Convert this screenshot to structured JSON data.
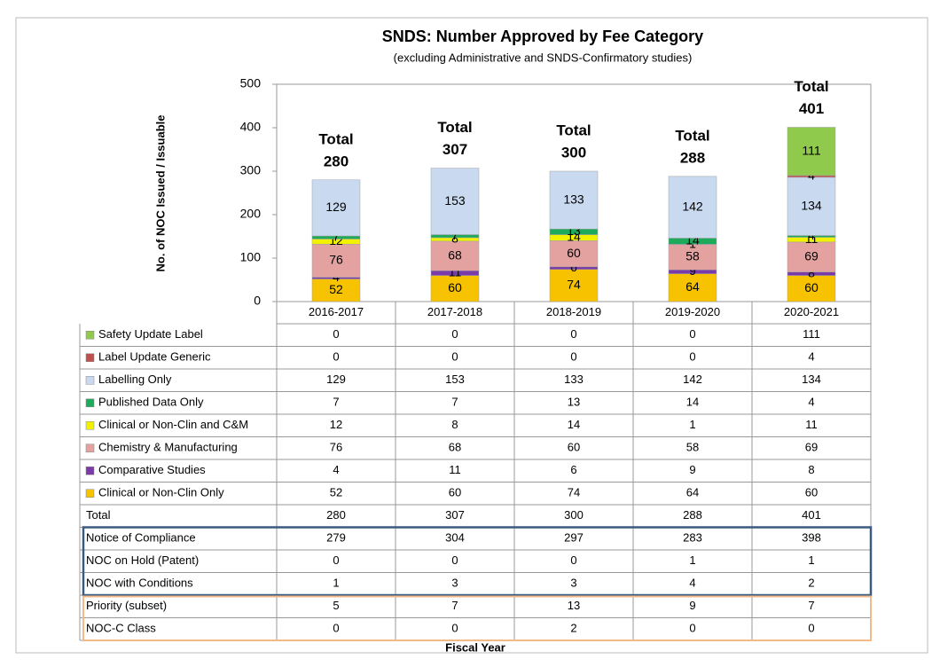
{
  "chart_data": {
    "type": "stacked_bar",
    "title": "SNDS: Number Approved by Fee Category",
    "subtitle": "(excluding Administrative and SNDS-Confirmatory studies)",
    "y_label": "No. of NOC Issued / Issuable",
    "x_label": "Fiscal Year",
    "total_label": "Total",
    "categories": [
      "2016-2017",
      "2017-2018",
      "2018-2019",
      "2019-2020",
      "2020-2021"
    ],
    "ylim": [
      0,
      500
    ],
    "yticks": [
      0,
      100,
      200,
      300,
      400,
      500
    ],
    "series": [
      {
        "name": "Safety Update Label",
        "color": "#8fca4c",
        "values": [
          0,
          0,
          0,
          0,
          111
        ]
      },
      {
        "name": "Label Update Generic",
        "color": "#c0504d",
        "values": [
          0,
          0,
          0,
          0,
          4
        ]
      },
      {
        "name": "Labelling Only",
        "color": "#c9daf0",
        "values": [
          129,
          153,
          133,
          142,
          134
        ]
      },
      {
        "name": "Published Data Only",
        "color": "#1daa5a",
        "values": [
          7,
          7,
          13,
          14,
          4
        ]
      },
      {
        "name": "Clinical or Non-Clin and C&M",
        "color": "#f2f200",
        "values": [
          12,
          8,
          14,
          1,
          11
        ]
      },
      {
        "name": "Chemistry & Manufacturing",
        "color": "#e3a2a0",
        "values": [
          76,
          68,
          60,
          58,
          69
        ]
      },
      {
        "name": "Comparative Studies",
        "color": "#7a3aa8",
        "values": [
          4,
          11,
          6,
          9,
          8
        ]
      },
      {
        "name": "Clinical or Non-Clin Only",
        "color": "#f7c300",
        "values": [
          52,
          60,
          74,
          64,
          60
        ]
      }
    ],
    "rows": [
      {
        "name": "Total",
        "values": [
          280,
          307,
          300,
          288,
          401
        ]
      },
      {
        "name": "Notice of Compliance",
        "values": [
          279,
          304,
          297,
          283,
          398
        ]
      },
      {
        "name": "NOC on Hold (Patent)",
        "values": [
          0,
          0,
          0,
          1,
          1
        ]
      },
      {
        "name": "NOC with Conditions",
        "values": [
          1,
          3,
          3,
          4,
          2
        ]
      },
      {
        "name": "Priority (subset)",
        "values": [
          5,
          7,
          13,
          9,
          7
        ]
      },
      {
        "name": "NOC-C Class",
        "values": [
          0,
          0,
          2,
          0,
          0
        ]
      }
    ]
  }
}
